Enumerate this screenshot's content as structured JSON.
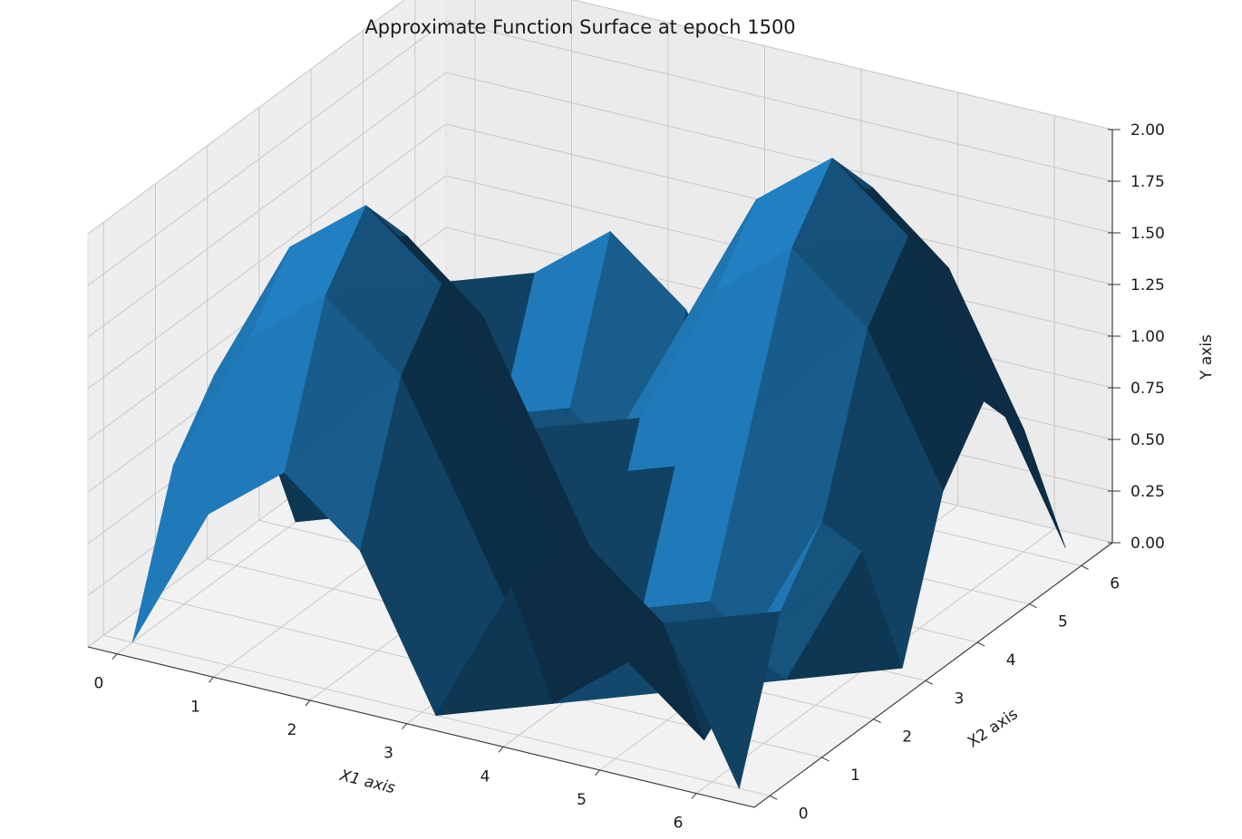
{
  "chart_data": {
    "type": "surface3d",
    "title": "Approximate Function Surface at epoch 1500",
    "xlabel": "X1 axis",
    "ylabel": "X2 axis",
    "zlabel": "Y axis",
    "x_ticks": [
      0,
      1,
      2,
      3,
      4,
      5,
      6
    ],
    "y_ticks": [
      0,
      1,
      2,
      3,
      4,
      5,
      6
    ],
    "z_ticks": [
      "0.00",
      "0.25",
      "0.50",
      "0.75",
      "1.00",
      "1.25",
      "1.50",
      "1.75",
      "2.00"
    ],
    "xlim": [
      -0.3,
      6.6
    ],
    "ylim": [
      -0.3,
      6.6
    ],
    "zlim": [
      0,
      2
    ],
    "grid": true,
    "surface_color": "#1f77b4",
    "grid_x": [
      0,
      0.785,
      1.571,
      2.356,
      3.142,
      3.927,
      4.712,
      5.498,
      6.283
    ],
    "grid_y": [
      0,
      0.785,
      1.571,
      2.356,
      3.142,
      3.927,
      4.712,
      5.498,
      6.283
    ],
    "z_values": [
      [
        0.0,
        0.71,
        1.0,
        0.71,
        0.0,
        0.71,
        1.0,
        0.71,
        0.0
      ],
      [
        0.71,
        1.41,
        1.71,
        1.41,
        0.71,
        0.0,
        0.29,
        0.0,
        0.71
      ],
      [
        1.0,
        1.71,
        2.0,
        1.71,
        1.0,
        0.29,
        0.0,
        0.29,
        1.0
      ],
      [
        0.71,
        1.41,
        1.71,
        1.41,
        0.71,
        0.0,
        0.29,
        0.0,
        0.71
      ],
      [
        0.0,
        0.71,
        1.0,
        0.71,
        0.0,
        0.71,
        1.0,
        0.71,
        0.0
      ],
      [
        0.71,
        0.0,
        0.29,
        0.0,
        0.71,
        1.41,
        1.71,
        1.41,
        0.71
      ],
      [
        1.0,
        0.29,
        0.0,
        0.29,
        1.0,
        1.71,
        2.0,
        1.71,
        1.0
      ],
      [
        0.71,
        0.0,
        0.29,
        0.0,
        0.71,
        1.41,
        1.71,
        1.41,
        0.71
      ],
      [
        0.0,
        0.71,
        1.0,
        0.71,
        0.0,
        0.71,
        1.0,
        0.71,
        0.0
      ]
    ]
  }
}
